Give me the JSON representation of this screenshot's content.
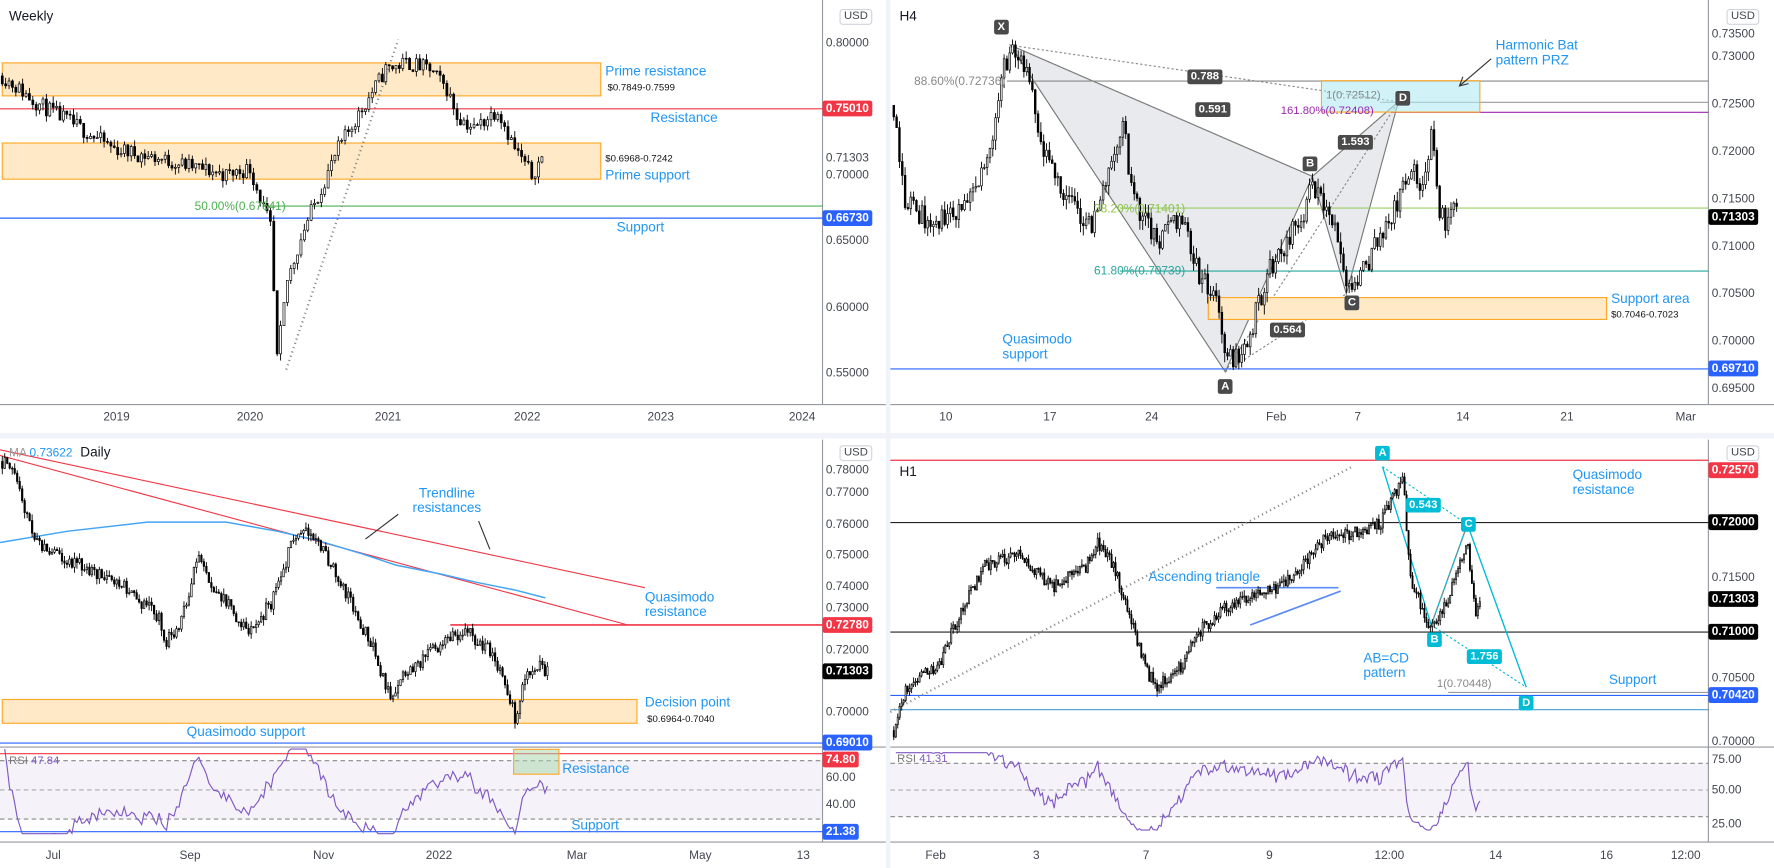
{
  "currency": "USD",
  "weekly": {
    "title": "Weekly",
    "labels": {
      "prime_resistance": "Prime resistance",
      "prime_resistance_range": "$0.7849-0.7599",
      "resistance": "Resistance",
      "prime_support_range": "$0.6968-0.7242",
      "prime_support": "Prime support",
      "fib": "50.00%(0.67641)",
      "support": "Support"
    },
    "axis": [
      {
        "label": "0.80000",
        "price": 0.8
      },
      {
        "label": "0.75010",
        "price": 0.7501,
        "color": "#f23645"
      },
      {
        "label": "0.71303",
        "price": 0.71303,
        "plain": true
      },
      {
        "label": "0.70000",
        "price": 0.7
      },
      {
        "label": "0.66730",
        "price": 0.6673,
        "color": "#2962ff"
      },
      {
        "label": "0.65000",
        "price": 0.65
      },
      {
        "label": "0.60000",
        "price": 0.6
      },
      {
        "label": "0.55000",
        "price": 0.55
      }
    ],
    "time_axis": [
      "2019",
      "2020",
      "2021",
      "2022",
      "2023",
      "2024"
    ],
    "bars": 160,
    "path": [
      [
        0,
        0.775
      ],
      [
        10,
        0.755
      ],
      [
        20,
        0.74
      ],
      [
        33,
        0.72
      ],
      [
        50,
        0.71
      ],
      [
        66,
        0.7
      ],
      [
        73,
        0.705
      ],
      [
        79,
        0.66
      ],
      [
        81,
        0.56
      ],
      [
        84,
        0.62
      ],
      [
        89,
        0.66
      ],
      [
        99,
        0.72
      ],
      [
        113,
        0.78
      ],
      [
        119,
        0.785
      ],
      [
        126,
        0.78
      ],
      [
        131,
        0.765
      ],
      [
        134,
        0.745
      ],
      [
        139,
        0.735
      ],
      [
        146,
        0.75
      ],
      [
        151,
        0.72
      ],
      [
        156,
        0.7
      ],
      [
        159,
        0.713
      ]
    ]
  },
  "h4": {
    "title": "H4",
    "points": {
      "x": "X",
      "a": "A",
      "b": "B",
      "c": "C",
      "d": "D"
    },
    "ratios": {
      "xb": "0.788",
      "ac": "0.591",
      "bd": "1.593",
      "xa": "0.564"
    },
    "labels": {
      "fib886": "88.60%(0.72736)",
      "xa1": "1(0.72512)",
      "ext1618": "161.80%(0.72408)",
      "fib382": "38.20%(0.71401)",
      "fib618": "61.80%(0.70739)",
      "prz": "Harmonic Bat pattern PRZ",
      "support_area": "Support area",
      "support_area_range": "$0.7046-0.7023",
      "qm_support": "Quasimodo support"
    },
    "axis": [
      {
        "label": "0.73500",
        "price": 0.735
      },
      {
        "label": "0.73000",
        "price": 0.73
      },
      {
        "label": "0.72500",
        "price": 0.725
      },
      {
        "label": "0.72000",
        "price": 0.72
      },
      {
        "label": "0.71500",
        "price": 0.715
      },
      {
        "label": "0.71303",
        "price": 0.71303,
        "color": "#000000"
      },
      {
        "label": "0.71000",
        "price": 0.71
      },
      {
        "label": "0.70500",
        "price": 0.705
      },
      {
        "label": "0.70000",
        "price": 0.7
      },
      {
        "label": "0.69710",
        "price": 0.6971,
        "color": "#2962ff"
      },
      {
        "label": "0.69500",
        "price": 0.695
      }
    ],
    "time_axis": [
      "10",
      "17",
      "24",
      "Feb",
      "7",
      "14",
      "21",
      "Mar"
    ],
    "bars": 200,
    "path": [
      [
        0,
        0.7248
      ],
      [
        4,
        0.715
      ],
      [
        14,
        0.712
      ],
      [
        28,
        0.715
      ],
      [
        34,
        0.72
      ],
      [
        38,
        0.728
      ],
      [
        42,
        0.731
      ],
      [
        48,
        0.727
      ],
      [
        52,
        0.72
      ],
      [
        64,
        0.714
      ],
      [
        70,
        0.712
      ],
      [
        78,
        0.72
      ],
      [
        81,
        0.723
      ],
      [
        84,
        0.716
      ],
      [
        88,
        0.713
      ],
      [
        94,
        0.71
      ],
      [
        98,
        0.713
      ],
      [
        102,
        0.713
      ],
      [
        108,
        0.707
      ],
      [
        114,
        0.704
      ],
      [
        118,
        0.698
      ],
      [
        124,
        0.699
      ],
      [
        132,
        0.707
      ],
      [
        144,
        0.713
      ],
      [
        148,
        0.716
      ],
      [
        156,
        0.712
      ],
      [
        160,
        0.705
      ],
      [
        164,
        0.706
      ],
      [
        170,
        0.71
      ],
      [
        176,
        0.713
      ],
      [
        183,
        0.718
      ],
      [
        187,
        0.716
      ],
      [
        190,
        0.722
      ],
      [
        193,
        0.714
      ],
      [
        196,
        0.712
      ],
      [
        199,
        0.714
      ]
    ]
  },
  "daily": {
    "title": "Daily",
    "ma_label": "MA",
    "ma_value": "0.73622",
    "rsi_label": "RSI",
    "rsi_value": "47.84",
    "labels": {
      "trendline": "Trendline resistances",
      "qm_resistance": "Quasimodo resistance",
      "decision": "Decision point",
      "decision_range": "$0.6964-0.7040",
      "qm_support": "Quasimodo support",
      "rsi_resistance": "Resistance",
      "rsi_support": "Support"
    },
    "axis": [
      {
        "label": "0.78000",
        "price": 0.78
      },
      {
        "label": "0.77000",
        "price": 0.77
      },
      {
        "label": "0.76000",
        "price": 0.76
      },
      {
        "label": "0.75000",
        "price": 0.75
      },
      {
        "label": "0.74000",
        "price": 0.74
      },
      {
        "label": "0.73000",
        "price": 0.73
      },
      {
        "label": "0.72780",
        "price": 0.7278,
        "color": "#f23645"
      },
      {
        "label": "0.72000",
        "price": 0.72
      },
      {
        "label": "0.71303",
        "price": 0.71303,
        "color": "#000000"
      },
      {
        "label": "0.70000",
        "price": 0.7
      },
      {
        "label": "0.69010",
        "price": 0.6901,
        "color": "#2962ff"
      }
    ],
    "rsi_axis": [
      {
        "label": "74.80",
        "value": 74.8,
        "color": "#f23645"
      },
      {
        "label": "60.00",
        "value": 60
      },
      {
        "label": "40.00",
        "value": 40
      },
      {
        "label": "21.38",
        "value": 21.38,
        "color": "#2962ff"
      }
    ],
    "time_axis": [
      "Jul",
      "Sep",
      "Nov",
      "2022",
      "Mar",
      "May",
      "13"
    ],
    "bars": 220,
    "path": [
      [
        0,
        0.78
      ],
      [
        6,
        0.775
      ],
      [
        9,
        0.765
      ],
      [
        13,
        0.755
      ],
      [
        22,
        0.75
      ],
      [
        36,
        0.745
      ],
      [
        49,
        0.74
      ],
      [
        63,
        0.73
      ],
      [
        66,
        0.722
      ],
      [
        72,
        0.73
      ],
      [
        79,
        0.75
      ],
      [
        83,
        0.74
      ],
      [
        90,
        0.735
      ],
      [
        99,
        0.725
      ],
      [
        108,
        0.735
      ],
      [
        117,
        0.755
      ],
      [
        124,
        0.758
      ],
      [
        131,
        0.748
      ],
      [
        140,
        0.735
      ],
      [
        149,
        0.72
      ],
      [
        156,
        0.705
      ],
      [
        160,
        0.71
      ],
      [
        167,
        0.715
      ],
      [
        174,
        0.72
      ],
      [
        181,
        0.725
      ],
      [
        188,
        0.725
      ],
      [
        195,
        0.72
      ],
      [
        201,
        0.712
      ],
      [
        206,
        0.698
      ],
      [
        210,
        0.71
      ],
      [
        215,
        0.715
      ],
      [
        219,
        0.713
      ]
    ]
  },
  "h1": {
    "title": "H1",
    "rsi_label": "RSI",
    "rsi_value": "41.31",
    "points": {
      "a": "A",
      "b": "B",
      "c": "C",
      "d": "D"
    },
    "ratios": {
      "bc": "0.543",
      "cd": "1.756"
    },
    "labels": {
      "qm_resistance": "Quasimodo resistance",
      "ascending": "Ascending triangle",
      "abcd": "AB=CD pattern",
      "proj": "1(0.70448)",
      "support": "Support"
    },
    "axis": [
      {
        "label": "0.72570",
        "price": 0.7257,
        "color": "#f23645"
      },
      {
        "label": "0.72000",
        "price": 0.72,
        "color": "#000000"
      },
      {
        "label": "0.71500",
        "price": 0.715
      },
      {
        "label": "0.71303",
        "price": 0.71303,
        "color": "#000000"
      },
      {
        "label": "0.71000",
        "price": 0.71,
        "color": "#000000"
      },
      {
        "label": "0.70500",
        "price": 0.705
      },
      {
        "label": "0.70420",
        "price": 0.7042,
        "color": "#2962ff"
      },
      {
        "label": "0.70000",
        "price": 0.7
      }
    ],
    "rsi_axis": [
      {
        "label": "75.00",
        "value": 75
      },
      {
        "label": "50.00",
        "value": 50
      },
      {
        "label": "25.00",
        "value": 25
      }
    ],
    "time_axis": [
      "Feb",
      "3",
      "7",
      "9",
      "12:00",
      "14",
      "16",
      "12:00"
    ],
    "bars": 297,
    "path": [
      [
        0,
        0.701
      ],
      [
        6,
        0.705
      ],
      [
        23,
        0.707
      ],
      [
        34,
        0.712
      ],
      [
        46,
        0.716
      ],
      [
        63,
        0.717
      ],
      [
        80,
        0.714
      ],
      [
        97,
        0.716
      ],
      [
        103,
        0.718
      ],
      [
        111,
        0.716
      ],
      [
        120,
        0.711
      ],
      [
        129,
        0.706
      ],
      [
        134,
        0.705
      ],
      [
        146,
        0.707
      ],
      [
        154,
        0.71
      ],
      [
        166,
        0.712
      ],
      [
        177,
        0.713
      ],
      [
        194,
        0.714
      ],
      [
        206,
        0.716
      ],
      [
        220,
        0.719
      ],
      [
        234,
        0.719
      ],
      [
        246,
        0.72
      ],
      [
        254,
        0.723
      ],
      [
        257,
        0.7245
      ],
      [
        261,
        0.715
      ],
      [
        271,
        0.71
      ],
      [
        280,
        0.713
      ],
      [
        290,
        0.718
      ],
      [
        294,
        0.711
      ],
      [
        296,
        0.713
      ]
    ]
  },
  "colors": {
    "resistance": "#f23645",
    "support": "#2962ff",
    "zone_fill": "#ffe9c7",
    "zone_border": "#ffa726",
    "label_blue": "#2196f3",
    "rsi": "#7e57c2",
    "harmonic": "#00bcd4"
  }
}
